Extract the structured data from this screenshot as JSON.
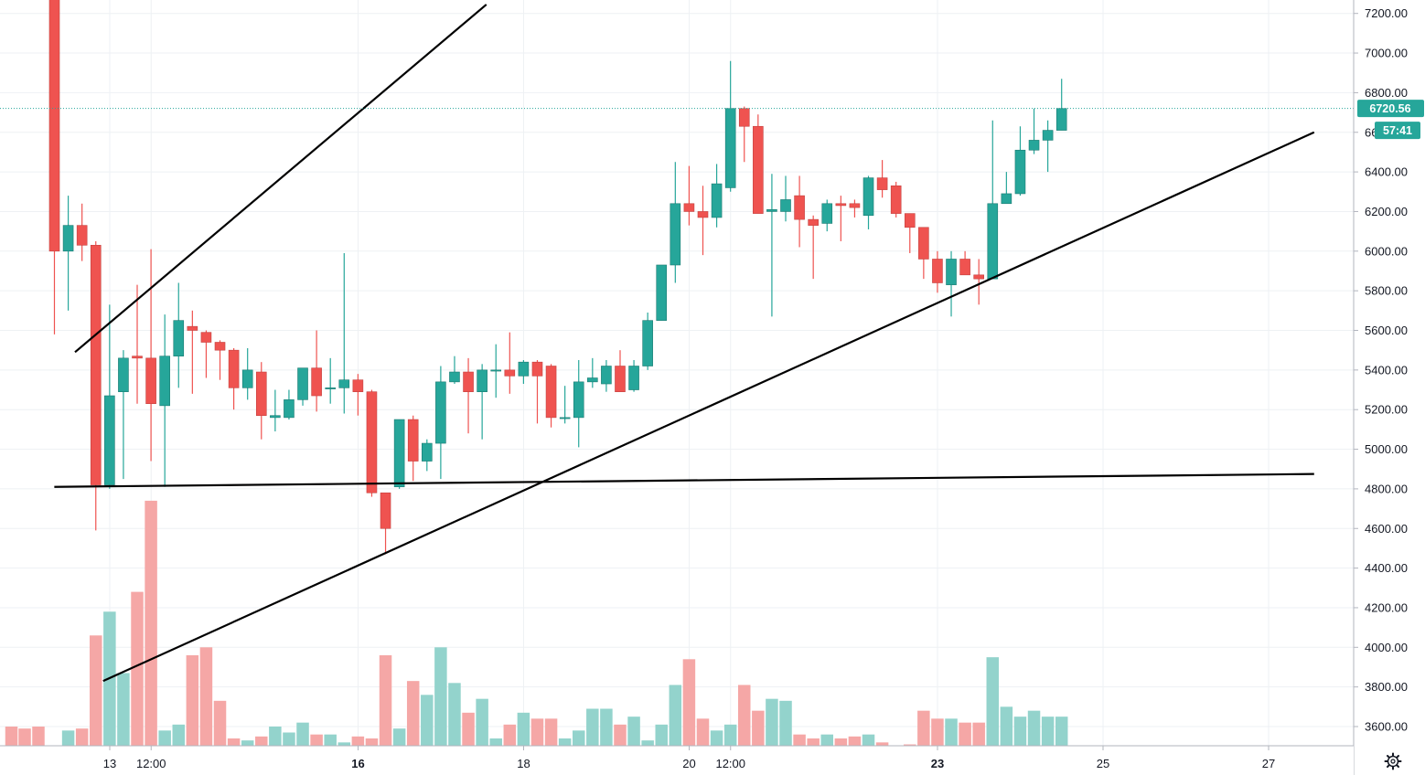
{
  "chart_data": {
    "type": "candlestick",
    "y_axis": {
      "ticks": [
        "7200.00",
        "7000.00",
        "6800.00",
        "6600.00",
        "6400.00",
        "6200.00",
        "6000.00",
        "5800.00",
        "5600.00",
        "5400.00",
        "5200.00",
        "5000.00",
        "4800.00",
        "4600.00",
        "4400.00",
        "4200.00",
        "4000.00",
        "3800.00",
        "3600.00"
      ],
      "range": [
        3540,
        7240
      ],
      "position": "right"
    },
    "x_axis": {
      "ticks": [
        {
          "label": "13",
          "bold": false,
          "t": 0
        },
        {
          "label": "12:00",
          "bold": false,
          "t": 0.5
        },
        {
          "label": "16",
          "bold": true,
          "t": 3
        },
        {
          "label": "18",
          "bold": false,
          "t": 5
        },
        {
          "label": "20",
          "bold": false,
          "t": 7
        },
        {
          "label": "12:00",
          "bold": false,
          "t": 7.5
        },
        {
          "label": "23",
          "bold": true,
          "t": 10
        },
        {
          "label": "25",
          "bold": false,
          "t": 12
        },
        {
          "label": "27",
          "bold": false,
          "t": 14
        }
      ],
      "unit": "days from the 13th"
    },
    "last_price": {
      "value": 6720.56,
      "label": "6720.56",
      "countdown": "57:41"
    },
    "colors": {
      "up": "#26a69a",
      "down": "#ef5350",
      "up_volume": "#93d3cc",
      "down_volume": "#f5a7a6",
      "grid": "#eef1f4",
      "trendline": "#000000"
    },
    "candles": [
      [
        7500,
        7500,
        5580,
        6000
      ],
      [
        6000,
        6280,
        5700,
        6130
      ],
      [
        6130,
        6240,
        5950,
        6030
      ],
      [
        6030,
        6050,
        4590,
        4820
      ],
      [
        4820,
        5730,
        4800,
        5270
      ],
      [
        5290,
        5500,
        4850,
        5460
      ],
      [
        5470,
        5830,
        5230,
        5460
      ],
      [
        5460,
        6010,
        4940,
        5230
      ],
      [
        5220,
        5680,
        4810,
        5470
      ],
      [
        5470,
        5840,
        5310,
        5650
      ],
      [
        5620,
        5700,
        5280,
        5600
      ],
      [
        5590,
        5600,
        5360,
        5540
      ],
      [
        5540,
        5550,
        5350,
        5500
      ],
      [
        5500,
        5510,
        5200,
        5310
      ],
      [
        5310,
        5510,
        5250,
        5400
      ],
      [
        5390,
        5440,
        5050,
        5170
      ],
      [
        5160,
        5300,
        5090,
        5170
      ],
      [
        5160,
        5300,
        5150,
        5250
      ],
      [
        5250,
        5410,
        5220,
        5410
      ],
      [
        5410,
        5600,
        5190,
        5270
      ],
      [
        5310,
        5460,
        5230,
        5310
      ],
      [
        5310,
        5990,
        5180,
        5350
      ],
      [
        5350,
        5380,
        5170,
        5290
      ],
      [
        5290,
        5300,
        4760,
        4780
      ],
      [
        4780,
        4780,
        4470,
        4600
      ],
      [
        4810,
        5150,
        4800,
        5150
      ],
      [
        5150,
        5170,
        4840,
        4940
      ],
      [
        4940,
        5050,
        4890,
        5030
      ],
      [
        5030,
        5420,
        4850,
        5340
      ],
      [
        5340,
        5470,
        5330,
        5390
      ],
      [
        5390,
        5460,
        5080,
        5290
      ],
      [
        5290,
        5430,
        5050,
        5400
      ],
      [
        5400,
        5530,
        5260,
        5400
      ],
      [
        5400,
        5590,
        5280,
        5370
      ],
      [
        5370,
        5450,
        5330,
        5440
      ],
      [
        5440,
        5450,
        5130,
        5370
      ],
      [
        5420,
        5430,
        5110,
        5160
      ],
      [
        5160,
        5320,
        5130,
        5160
      ],
      [
        5160,
        5450,
        5010,
        5340
      ],
      [
        5340,
        5460,
        5310,
        5360
      ],
      [
        5330,
        5450,
        5290,
        5420
      ],
      [
        5420,
        5500,
        5300,
        5290
      ],
      [
        5300,
        5450,
        5290,
        5420
      ],
      [
        5420,
        5690,
        5400,
        5650
      ],
      [
        5650,
        5930,
        5650,
        5930
      ],
      [
        5930,
        6450,
        5840,
        6240
      ],
      [
        6240,
        6430,
        6130,
        6200
      ],
      [
        6200,
        6330,
        5980,
        6170
      ],
      [
        6170,
        6440,
        6120,
        6340
      ],
      [
        6320,
        6960,
        6300,
        6720
      ],
      [
        6720,
        6730,
        6450,
        6630
      ],
      [
        6630,
        6690,
        6190,
        6190
      ],
      [
        6200,
        6390,
        5670,
        6210
      ],
      [
        6200,
        6380,
        6150,
        6260
      ],
      [
        6280,
        6380,
        6020,
        6160
      ],
      [
        6160,
        6180,
        5860,
        6130
      ],
      [
        6140,
        6260,
        6100,
        6240
      ],
      [
        6240,
        6280,
        6050,
        6230
      ],
      [
        6240,
        6260,
        6170,
        6220
      ],
      [
        6180,
        6380,
        6110,
        6370
      ],
      [
        6370,
        6460,
        6270,
        6310
      ],
      [
        6330,
        6350,
        6170,
        6190
      ],
      [
        6190,
        6190,
        5990,
        6120
      ],
      [
        6120,
        6120,
        5860,
        5960
      ],
      [
        5960,
        6000,
        5790,
        5840
      ],
      [
        5830,
        6000,
        5670,
        5960
      ],
      [
        5960,
        6000,
        5890,
        5880
      ],
      [
        5880,
        5960,
        5730,
        5860
      ],
      [
        5860,
        6660,
        5860,
        6240
      ],
      [
        6240,
        6400,
        6240,
        6290
      ],
      [
        6290,
        6630,
        6280,
        6510
      ],
      [
        6510,
        6720,
        6490,
        6560
      ],
      [
        6560,
        6660,
        6400,
        6610
      ],
      [
        6610,
        6870,
        6610,
        6720
      ]
    ],
    "volumes": [
      3600,
      3580,
      3590,
      4060,
      4180,
      3870,
      4280,
      4740,
      3580,
      3610,
      3960,
      4000,
      3730,
      3540,
      3530,
      3550,
      3600,
      3570,
      3620,
      3560,
      3560,
      3520,
      3550,
      3540,
      3960,
      3590,
      3830,
      3760,
      4000,
      3820,
      3670,
      3740,
      3540,
      3610,
      3670,
      3640,
      3640,
      3540,
      3580,
      3690,
      3690,
      3610,
      3650,
      3530,
      3610,
      3810,
      3940,
      3640,
      3580,
      3610,
      3810,
      3680,
      3740,
      3730,
      3560,
      3540,
      3560,
      3540,
      3550,
      3560,
      3520,
      3500,
      3510,
      3680,
      3640,
      3640,
      3620,
      3620,
      3950,
      3700,
      3650,
      3680,
      3650,
      3650
    ],
    "trendlines": [
      {
        "name": "channel-upper",
        "from": {
          "t": -0.42,
          "p": 5490
        },
        "to": {
          "t": 4.55,
          "p": 7245
        }
      },
      {
        "name": "channel-lower",
        "from": {
          "t": -0.08,
          "p": 3830
        },
        "to": {
          "t": 14.55,
          "p": 6600
        }
      },
      {
        "name": "horizontal-support",
        "from": {
          "t": -0.67,
          "p": 4810
        },
        "to": {
          "t": 14.55,
          "p": 4875
        }
      }
    ]
  },
  "icons": {
    "settings": "gear-icon"
  }
}
